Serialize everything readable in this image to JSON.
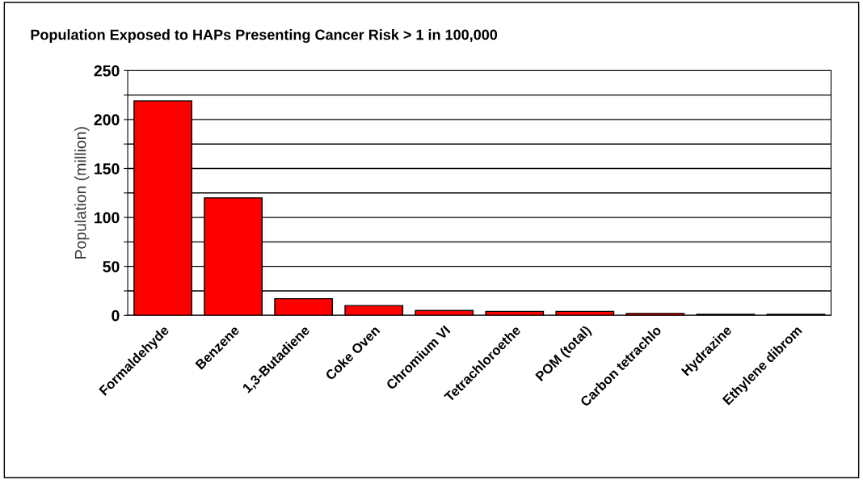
{
  "chart_data": {
    "type": "bar",
    "title": "Population Exposed to HAPs Presenting Cancer Risk > 1 in 100,000",
    "ylabel": "Population (million)",
    "categories": [
      "Formaldehyde",
      "Benzene",
      "1,3-Butadiene",
      "Coke Oven",
      "Chromium VI",
      "Tetrachloroethe",
      "POM (total)",
      "Carbon tetrachlo",
      "Hydrazine",
      "Ethylene dibrom"
    ],
    "values": [
      219,
      120,
      17,
      10,
      5,
      4,
      4,
      2,
      1,
      1
    ],
    "color": "#ff0000",
    "ylim": [
      0,
      250
    ],
    "yticks": [
      0,
      {
        "value": 25,
        "label": null
      },
      50,
      {
        "value": 75,
        "label": null
      },
      100,
      {
        "value": 125,
        "label": null
      },
      150,
      {
        "value": 175,
        "label": null
      },
      200,
      {
        "value": 225,
        "label": null
      },
      250
    ],
    "grid": "y"
  }
}
